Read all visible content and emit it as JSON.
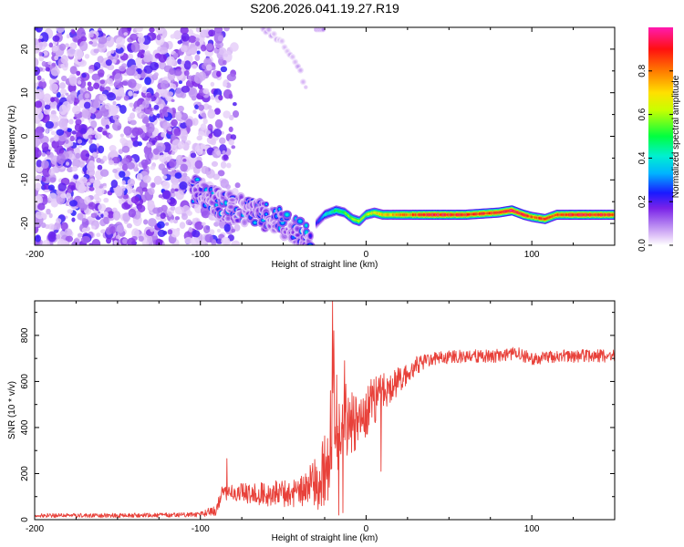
{
  "title": "S206.2026.041.19.27.R19",
  "colors": {
    "line": "#e8413a",
    "axis": "#000000",
    "background": "#ffffff"
  },
  "chart_data": [
    {
      "type": "heatmap",
      "name": "spectrogram",
      "xlabel": "Height of straight line (km)",
      "ylabel": "Frequency (Hz)",
      "xlim": [
        -200,
        150
      ],
      "ylim": [
        -25,
        25
      ],
      "xticks": [
        -200,
        -100,
        0,
        100
      ],
      "xtick_labels": [
        "-200",
        "-100",
        "0",
        "100"
      ],
      "yticks": [
        -20,
        -10,
        0,
        10,
        20
      ],
      "ytick_labels": [
        "-20",
        "-10",
        "0",
        "10",
        "20"
      ],
      "colorbar": {
        "label": "Normalized spectral amplitude",
        "range": [
          0,
          1
        ],
        "ticks": [
          0.0,
          0.2,
          0.4,
          0.6,
          0.8
        ],
        "tick_labels": [
          "0.0",
          "0.2",
          "0.4",
          "0.6",
          "0.8"
        ],
        "colormap": "rainbow"
      },
      "features": {
        "noise_region_x": [
          -200,
          -95
        ],
        "noise_fade_x": [
          -95,
          -75
        ],
        "noise_amplitude": 0.12,
        "descending_track": {
          "x": [
            -105,
            -95,
            -85,
            -75,
            -65,
            -55,
            -45,
            -38,
            -33
          ],
          "y": [
            -12,
            -14,
            -16,
            -17,
            -18,
            -19,
            -21,
            -23,
            -24
          ],
          "amplitude": 0.3
        },
        "upper_arc": {
          "x": [
            -62,
            -52,
            -42,
            -35
          ],
          "y": [
            25,
            22,
            17,
            10
          ],
          "amplitude": 0.06
        },
        "top_blob": {
          "x": [
            -30,
            -26
          ],
          "y": [
            24.5,
            24.5
          ],
          "amplitude": 0.1
        },
        "tone_track": {
          "x": [
            -30,
            -25,
            -18,
            -13,
            -8,
            -4,
            0,
            5,
            10,
            20,
            40,
            60,
            80,
            88,
            95,
            100,
            108,
            115,
            130,
            150
          ],
          "y": [
            -20,
            -18,
            -17,
            -17.5,
            -19,
            -19.5,
            -18,
            -17.5,
            -18,
            -18,
            -18,
            -18,
            -17.5,
            -17,
            -18,
            -18.5,
            -19,
            -18,
            -18,
            -18
          ],
          "amplitude": [
            0.25,
            0.4,
            0.5,
            0.55,
            0.6,
            0.6,
            0.65,
            0.7,
            0.75,
            0.8,
            0.95,
            0.92,
            0.9,
            0.98,
            0.92,
            0.85,
            0.9,
            0.88,
            0.95,
            0.9
          ]
        }
      }
    },
    {
      "type": "line",
      "name": "snr",
      "xlabel": "Height of straight line (km)",
      "ylabel": "SNR (10 * v/v)",
      "xlim": [
        -200,
        150
      ],
      "ylim": [
        0,
        950
      ],
      "xticks": [
        -200,
        -100,
        0,
        100
      ],
      "xtick_labels": [
        "-200",
        "-100",
        "0",
        "100"
      ],
      "yticks": [
        0,
        200,
        400,
        600,
        800
      ],
      "ytick_labels": [
        "0",
        "200",
        "400",
        "600",
        "800"
      ],
      "baseline": {
        "x": [
          -200,
          -150,
          -100,
          -90,
          -87,
          -80,
          -60,
          -40,
          -28,
          -22,
          -19,
          -17,
          -13,
          -8,
          -3,
          0,
          5,
          10,
          20,
          25,
          30,
          40,
          60,
          80,
          90,
          100,
          120,
          150
        ],
        "y": [
          18,
          18,
          22,
          45,
          115,
          120,
          110,
          120,
          170,
          290,
          520,
          380,
          450,
          420,
          440,
          480,
          520,
          555,
          610,
          640,
          670,
          700,
          710,
          710,
          725,
          700,
          710,
          710
        ]
      },
      "noise": {
        "x": [
          -200,
          -100,
          -90,
          -60,
          -40,
          -30,
          -20,
          -17,
          -15,
          -10,
          0,
          10,
          20,
          30,
          40,
          150
        ],
        "y": [
          9,
          10,
          28,
          55,
          65,
          110,
          230,
          190,
          150,
          140,
          120,
          90,
          60,
          40,
          28,
          28
        ]
      },
      "spikes": [
        {
          "x": -20.3,
          "y": 950
        },
        {
          "x": -19.6,
          "y": 820
        },
        {
          "x": -21.5,
          "y": 560
        },
        {
          "x": -16.5,
          "y": 20
        },
        {
          "x": -14,
          "y": 30
        },
        {
          "x": -13,
          "y": 690
        },
        {
          "x": -11.5,
          "y": 280
        },
        {
          "x": 9,
          "y": 210
        },
        {
          "x": -84,
          "y": 265
        },
        {
          "x": 79,
          "y": 740
        }
      ]
    }
  ]
}
